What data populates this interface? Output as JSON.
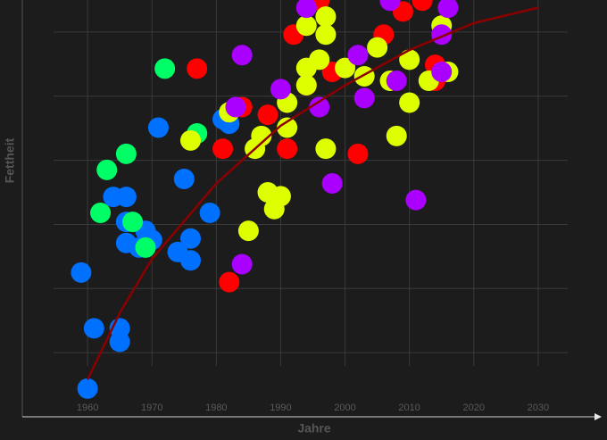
{
  "chart_data": {
    "type": "scatter",
    "x_label": "Jahre",
    "y_label": "Fettheit",
    "xlim": [
      1950,
      2040
    ],
    "ylim": [
      0,
      6.5
    ],
    "xticks": [
      1960,
      1970,
      1980,
      1990,
      2000,
      2010,
      2020,
      2030
    ],
    "yticks": [
      1,
      2,
      3,
      4,
      5,
      6
    ],
    "grid": true,
    "series": [
      {
        "color": "#0070ff",
        "x": [
          1960,
          1959,
          1961,
          1965,
          1965,
          1964,
          1966,
          1966,
          1969,
          1966,
          1968,
          1970,
          1971,
          1975,
          1979,
          1974,
          1976,
          1976,
          1981,
          1982
        ],
        "values": [
          0.44,
          2.25,
          1.38,
          1.38,
          1.17,
          3.43,
          3.43,
          3.04,
          2.9,
          2.71,
          2.64,
          2.76,
          4.51,
          3.71,
          3.18,
          2.57,
          2.78,
          2.44,
          4.64,
          4.57
        ]
      },
      {
        "color": "#00ff66",
        "x": [
          1972,
          1963,
          1966,
          1962,
          1977,
          1967,
          1969
        ],
        "values": [
          5.43,
          3.85,
          4.1,
          3.18,
          4.42,
          3.04,
          2.64
        ]
      },
      {
        "color": "#ff0000",
        "x": [
          1977,
          1981,
          1982,
          1984,
          1988,
          1991,
          1994,
          1998,
          2002,
          1992,
          1996,
          2006,
          2009,
          2012,
          2014,
          2014
        ],
        "values": [
          5.43,
          4.18,
          2.1,
          4.83,
          4.71,
          4.18,
          5.17,
          5.38,
          4.1,
          5.96,
          6.49,
          5.96,
          6.32,
          6.49,
          5.49,
          5.24
        ]
      },
      {
        "color": "#ddff00",
        "x": [
          1976,
          1982,
          1987,
          1986,
          1991,
          1991,
          1988,
          1990,
          1989,
          1985,
          1994,
          1994,
          1994,
          1997,
          1997,
          1996,
          1997,
          2000,
          2003,
          2005,
          2007,
          2008,
          2010,
          2010,
          2013,
          2016,
          2015
        ],
        "values": [
          4.31,
          4.75,
          4.38,
          4.18,
          4.51,
          4.9,
          3.5,
          3.44,
          3.24,
          2.9,
          5.44,
          5.17,
          6.1,
          5.96,
          6.24,
          5.57,
          4.18,
          5.44,
          5.31,
          5.76,
          5.24,
          4.38,
          5.57,
          4.9,
          5.24,
          5.38,
          6.1
        ]
      },
      {
        "color": "#aa00ff",
        "x": [
          1984,
          1983,
          1984,
          1990,
          1996,
          1998,
          1994,
          2002,
          2003,
          2008,
          2007,
          2011,
          2015,
          2016,
          2015
        ],
        "values": [
          5.64,
          4.83,
          2.38,
          5.11,
          4.83,
          3.64,
          6.38,
          5.64,
          4.97,
          5.24,
          6.49,
          3.38,
          5.96,
          6.38,
          5.38
        ]
      }
    ],
    "trend": {
      "color": "#8b0000",
      "x": [
        1960,
        1965,
        1970,
        1980,
        1990,
        2000,
        2010,
        2020,
        2030
      ],
      "values": [
        0.58,
        1.62,
        2.46,
        3.64,
        4.54,
        5.17,
        5.72,
        6.14,
        6.38
      ]
    }
  }
}
